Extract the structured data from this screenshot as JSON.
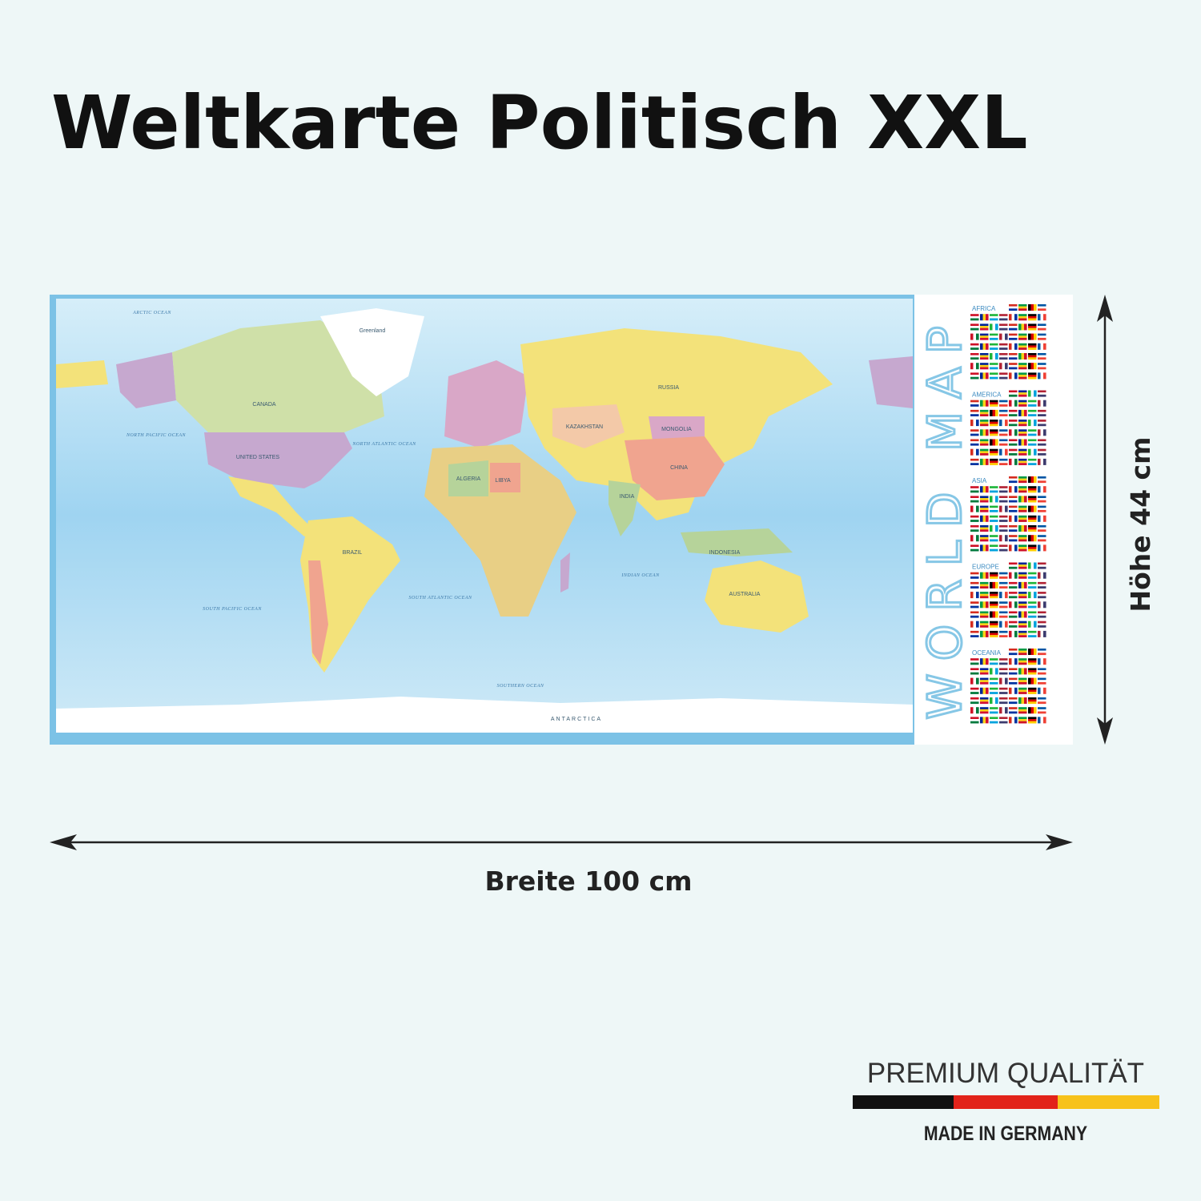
{
  "header": {
    "title": "Weltkarte Politisch XXL"
  },
  "map": {
    "labels": [
      "ARCTIC OCEAN",
      "Greenland",
      "CANADA",
      "UNITED STATES",
      "NORTH PACIFIC OCEAN",
      "NORTH ATLANTIC OCEAN",
      "RUSSIA",
      "KAZAKHSTAN",
      "MONGOLIA",
      "CHINA",
      "INDIA",
      "BRAZIL",
      "ALGERIA",
      "LIBYA",
      "INDONESIA",
      "AUSTRALIA",
      "SOUTH PACIFIC OCEAN",
      "SOUTH ATLANTIC OCEAN",
      "INDIAN OCEAN",
      "SOUTHERN OCEAN",
      "ANTARCTICA"
    ],
    "side_title": "WORLD MAP",
    "flag_sections": [
      "AFRICA",
      "AMERICA",
      "ASIA",
      "EUROPE",
      "OCEANIA"
    ]
  },
  "dimensions": {
    "width": "Breite 100 cm",
    "height": "Höhe 44 cm"
  },
  "badge": {
    "quality": "PREMIUM QUALITÄT",
    "origin": "MADE IN GERMANY"
  }
}
